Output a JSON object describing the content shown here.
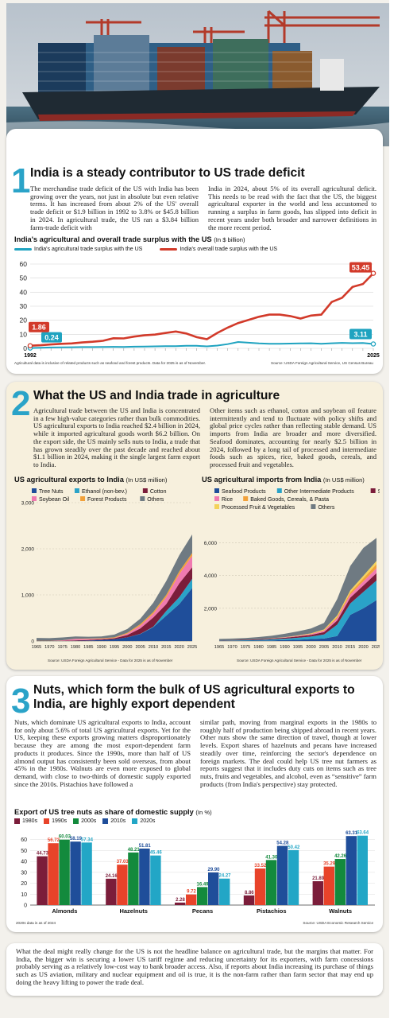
{
  "colors": {
    "accent": "#2aa3c8",
    "ag": "#1fa3c0",
    "overall": "#d23a2a"
  },
  "section1": {
    "number": "1",
    "heading": "India is a steady contributor to US trade deficit",
    "col_left": "The merchandise trade deficit of the US with India has been growing over the years, not just in absolute but even relative terms. It has increased from about 2% of the US' overall trade deficit or $1.9 billion in 1992 to 3.8% or $45.8 billion in 2024. In agricultural trade, the US ran a $3.84 billion farm-trade deficit with",
    "col_right": "India in 2024, about 5% of its overall agricultural deficit. This needs to be read with the fact that the US, the biggest agricultural exporter in the world and less accustomed to running a surplus in farm goods, has slipped into deficit in recent years under both broader and narrower definitions in the more recent period.",
    "chart_title": "India's agricultural and overall trade surplus with the US",
    "chart_unit": "(In $ billion)",
    "note_left": "Agricultural data is inclusive of related products such as seafood and forest products. Data for 2025 is as of November.",
    "note_right": "Source: USDA Foreign Agricultural Service, US Census Bureau"
  },
  "section2": {
    "number": "2",
    "heading": "What the US and India trade in agriculture",
    "col_left": "Agricultural trade between the US and India is concentrated in a few high-value categories rather than bulk commodities. US agricultural exports to India reached $2.4 billion in 2024, while it imported agricultural goods worth $6.2 billion. On the export side, the US mainly sells nuts to India, a trade that has grown steadily over the past decade and reached about $1.1 billion in 2024, making it the single largest farm export to India.",
    "col_right": "Other items such as ethanol, cotton and soybean oil feature intermittently and tend to fluctuate with policy shifts and global price cycles rather than reflecting stable demand. US imports from India are broader and more diversified. Seafood dominates, accounting for nearly $2.5 billion in 2024, followed by a long tail of processed and intermediate foods such as spices, rice, baked goods, cereals, and processed fruit and vegetables.",
    "left_title": "US agricultural exports to India",
    "left_unit": "(In US$ million)",
    "right_title": "US agricultural imports from India",
    "right_unit": "(In US$ million)",
    "left_note": "Source: USDA Foreign Agricultural Service - Data for 2025 is as of November",
    "right_note": "Source: USDA Foreign Agricultural Service - Data for 2025 is as of November"
  },
  "section3": {
    "number": "3",
    "heading_l1": "Nuts, which form the bulk of US agricultural exports to",
    "heading_l2": "India, are highly export dependent",
    "col_left": "Nuts, which dominate US agricultural exports to India, account for only about 5.6% of total US agricultural exports. Yet for the US, keeping these exports growing matters disproportionately because they are among the most export-dependent farm products it produces. Since the 1990s, more than half of US almond output has consistently been sold overseas, from about 45% in the 1980s. Walnuts are even more exposed to global demand, with close to two-thirds of domestic supply exported since the 2010s. Pistachios have followed a",
    "col_right": "similar path, moving from marginal exports in the 1980s to roughly half of production being shipped abroad in recent years. Other nuts show the same direction of travel, though at lower levels. Export shares of hazelnuts and pecans have increased steadily over time, reinforcing the sector's dependence on foreign markets. The deal could help US tree nut farmers as reports suggest that it includes duty cuts on items such as tree nuts, fruits and vegetables, and alcohol, even as “sensitive” farm products (from India's perspective) stay protected.",
    "chart_title": "Export of US tree nuts as share of domestic supply",
    "chart_unit": "(In %)",
    "note_left": "2020s data is as of 2024",
    "note_right": "Source: USDA Economic Research Service"
  },
  "closing": "What the deal might really change for the US is not the headline balance on agricultural trade, but the margins that matter. For India, the bigger win is securing a lower US tariff regime and reducing uncertainty for its exporters, with farm concessions probably serving as a relatively low-cost way to bank broader access. Also, if reports about India increasing its purchase of things such as US aviation, military and nuclear equipment and oil is true, it is the non-farm rather than farm sector that may end up doing the heavy lifting to power the trade deal.",
  "chart_data": [
    {
      "type": "line",
      "title": "India's agricultural and overall trade surplus with the US",
      "ylabel": "(In $ billion)",
      "x": [
        1992,
        1993,
        1994,
        1995,
        1996,
        1997,
        1998,
        1999,
        2000,
        2001,
        2002,
        2003,
        2004,
        2005,
        2006,
        2007,
        2008,
        2009,
        2010,
        2011,
        2012,
        2013,
        2014,
        2015,
        2016,
        2017,
        2018,
        2019,
        2020,
        2021,
        2022,
        2023,
        2024,
        2025
      ],
      "xticks": [
        "1992",
        "2025"
      ],
      "ylim": [
        0,
        60
      ],
      "yticks": [
        0,
        10,
        20,
        30,
        40,
        50,
        60
      ],
      "grid": true,
      "legend": "top",
      "series": [
        {
          "name": "India's agricultural trade surplus with the US",
          "color": "#1fa3c0",
          "values": [
            0.24,
            0.4,
            0.6,
            0.7,
            0.8,
            0.9,
            0.9,
            1,
            1.1,
            1,
            1.2,
            1.3,
            1.4,
            1.5,
            1.6,
            1.8,
            1.8,
            1.4,
            2,
            3,
            4.5,
            4,
            3.5,
            3.3,
            3.2,
            3.4,
            3.5,
            3.6,
            3.3,
            3.6,
            3.9,
            3.7,
            3.8,
            3.11
          ],
          "labels": {
            "start": "0.24",
            "end": "3.11"
          }
        },
        {
          "name": "India's overall trade surplus with the US",
          "color": "#d23a2a",
          "values": [
            1.86,
            2.2,
            2.8,
            3.2,
            3.5,
            4.2,
            4.7,
            5.4,
            7.2,
            7.1,
            8.4,
            9.3,
            9.8,
            10.9,
            12,
            10.6,
            8,
            6.5,
            11,
            14.8,
            18,
            20.2,
            22.5,
            24,
            24,
            23,
            21.2,
            23.3,
            24,
            33,
            36,
            43.7,
            45.8,
            53.45
          ],
          "labels": {
            "start": "1.86",
            "end": "53.45"
          }
        }
      ]
    },
    {
      "type": "area",
      "title": "US agricultural exports to India",
      "ylabel": "(In US$ million)",
      "x": [
        1965,
        1970,
        1975,
        1980,
        1985,
        1990,
        1995,
        2000,
        2005,
        2010,
        2015,
        2020,
        2025
      ],
      "ylim": [
        0,
        3000
      ],
      "yticks": [
        0,
        1000,
        2000,
        3000
      ],
      "series": [
        {
          "name": "Tree Nuts",
          "color": "#1f4e9a",
          "values": [
            0,
            0,
            0,
            5,
            10,
            20,
            40,
            80,
            150,
            300,
            550,
            800,
            1150
          ]
        },
        {
          "name": "Ethanol (non-bev.)",
          "color": "#2aa3c8",
          "values": [
            0,
            0,
            0,
            0,
            0,
            0,
            0,
            0,
            5,
            10,
            100,
            150,
            200
          ]
        },
        {
          "name": "Cotton",
          "color": "#7b1d3a",
          "values": [
            5,
            5,
            5,
            10,
            15,
            20,
            20,
            50,
            120,
            200,
            150,
            300,
            250
          ]
        },
        {
          "name": "Soybean Oil",
          "color": "#f07ab0",
          "values": [
            0,
            0,
            10,
            30,
            20,
            10,
            5,
            30,
            60,
            80,
            150,
            200,
            250
          ]
        },
        {
          "name": "Forest Products",
          "color": "#f2a13a",
          "values": [
            2,
            2,
            3,
            5,
            8,
            10,
            15,
            20,
            30,
            40,
            50,
            60,
            60
          ]
        },
        {
          "name": "Others",
          "color": "#6f7a82",
          "values": [
            60,
            55,
            60,
            50,
            40,
            40,
            60,
            80,
            120,
            200,
            300,
            350,
            400
          ]
        }
      ]
    },
    {
      "type": "area",
      "title": "US agricultural imports from India",
      "ylabel": "(In US$ million)",
      "x": [
        1965,
        1970,
        1975,
        1980,
        1985,
        1990,
        1995,
        2000,
        2005,
        2010,
        2015,
        2020,
        2025
      ],
      "ylim": [
        0,
        7000
      ],
      "yticks": [
        2000,
        4000,
        6000
      ],
      "series": [
        {
          "name": "Seafood Products",
          "color": "#1f4e9a",
          "values": [
            5,
            10,
            20,
            30,
            40,
            60,
            80,
            120,
            150,
            300,
            1600,
            2000,
            2500
          ]
        },
        {
          "name": "Other Intermediate Products",
          "color": "#2aa3c8",
          "values": [
            20,
            25,
            30,
            40,
            60,
            80,
            120,
            150,
            250,
            700,
            700,
            1000,
            1200
          ]
        },
        {
          "name": "Spices",
          "color": "#7b1d3a",
          "values": [
            20,
            25,
            30,
            40,
            50,
            60,
            80,
            100,
            150,
            250,
            350,
            400,
            450
          ]
        },
        {
          "name": "Rice",
          "color": "#f07ab0",
          "values": [
            0,
            0,
            0,
            5,
            10,
            20,
            30,
            50,
            80,
            150,
            200,
            250,
            300
          ]
        },
        {
          "name": "Baked Goods, Cereals, & Pasta",
          "color": "#f2a13a",
          "values": [
            0,
            0,
            0,
            0,
            5,
            10,
            15,
            20,
            40,
            80,
            120,
            180,
            250
          ]
        },
        {
          "name": "Processed Fruit & Vegetables",
          "color": "#f4d25a",
          "values": [
            0,
            0,
            0,
            0,
            5,
            10,
            15,
            25,
            40,
            80,
            120,
            160,
            200
          ]
        },
        {
          "name": "Others",
          "color": "#6f7a82",
          "values": [
            80,
            90,
            100,
            130,
            150,
            200,
            250,
            300,
            400,
            1000,
            1500,
            1700,
            1400
          ]
        }
      ]
    },
    {
      "type": "bar",
      "title": "Export of US tree nuts as share of domestic supply",
      "ylabel": "(In %)",
      "categories": [
        "Almonds",
        "Hazelnuts",
        "Pecans",
        "Pistachios",
        "Walnuts"
      ],
      "ylim": [
        0,
        70
      ],
      "yticks": [
        0,
        10,
        20,
        30,
        40,
        50,
        60
      ],
      "legend": "top",
      "series": [
        {
          "name": "1980s",
          "color": "#7b1d3a",
          "values": [
            44.73,
            24.16,
            2.28,
            8.86,
            21.89
          ]
        },
        {
          "name": "1990s",
          "color": "#e8432a",
          "values": [
            56.72,
            37.03,
            9.72,
            33.52,
            35.29
          ]
        },
        {
          "name": "2000s",
          "color": "#138a3d",
          "values": [
            60.03,
            48.21,
            16.49,
            41.3,
            42.26
          ]
        },
        {
          "name": "2010s",
          "color": "#1f4e9a",
          "values": [
            58.19,
            51.81,
            29.9,
            54.28,
            63.31
          ]
        },
        {
          "name": "2020s",
          "color": "#22a6c6",
          "values": [
            57.34,
            45.46,
            24.27,
            50.42,
            63.64
          ]
        }
      ]
    }
  ]
}
